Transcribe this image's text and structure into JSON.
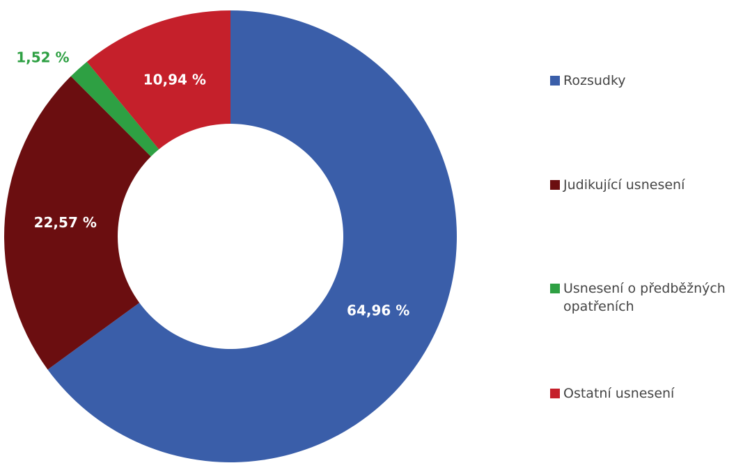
{
  "chart_data": {
    "type": "donut",
    "categories": [
      "Rozsudky",
      "Judikující usnesení",
      "Usnesení o předběžných opatřeních",
      "Ostatní usnesení"
    ],
    "values": [
      64.96,
      22.57,
      1.52,
      10.94
    ],
    "value_labels": [
      "64,96 %",
      "22,57 %",
      "1,52 %",
      "10,94 %"
    ],
    "colors": [
      "#3a5ea9",
      "#6b0e10",
      "#2ea043",
      "#c5202b"
    ],
    "legend": "right"
  }
}
